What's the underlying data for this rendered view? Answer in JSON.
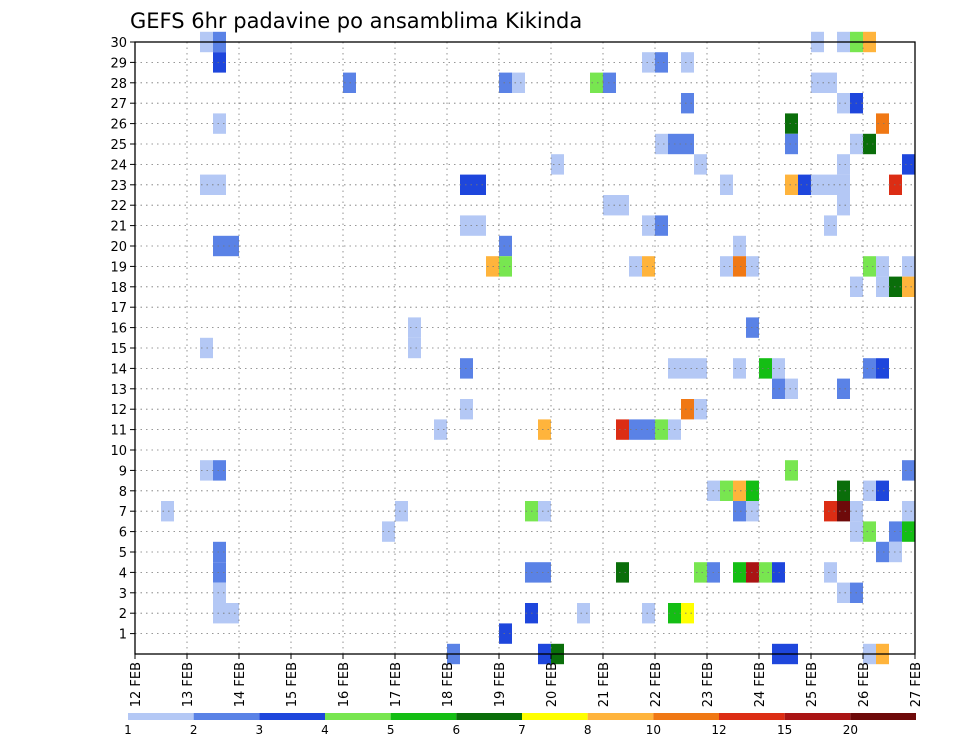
{
  "chart_data": {
    "type": "heatmap",
    "title": "GEFS 6hr padavine po ansamblima Kikinda",
    "xlabel": "",
    "ylabel": "",
    "x_ticks": [
      "12 FEB",
      "13 FEB",
      "14 FEB",
      "15 FEB",
      "16 FEB",
      "17 FEB",
      "18 FEB",
      "19 FEB",
      "20 FEB",
      "21 FEB",
      "22 FEB",
      "23 FEB",
      "24 FEB",
      "25 FEB",
      "26 FEB",
      "27 FEB"
    ],
    "y_ticks": [
      "1",
      "2",
      "3",
      "4",
      "5",
      "6",
      "7",
      "8",
      "9",
      "10",
      "11",
      "12",
      "13",
      "14",
      "15",
      "16",
      "17",
      "18",
      "19",
      "20",
      "21",
      "22",
      "23",
      "24",
      "25",
      "26",
      "27",
      "28",
      "29",
      "30"
    ],
    "x_step": "6hr",
    "x_range_steps": [
      0,
      60
    ],
    "y_range": [
      0,
      30
    ],
    "grid": true,
    "legend": {
      "placement": "bottom",
      "labels": [
        "1",
        "2",
        "3",
        "4",
        "5",
        "6",
        "7",
        "8",
        "10",
        "12",
        "15",
        "20"
      ],
      "colors": [
        "#b4c8f5",
        "#5a82e6",
        "#1e46dc",
        "#78e650",
        "#14be14",
        "#0a6e0a",
        "#ffff00",
        "#ffb43c",
        "#f07814",
        "#dc2d14",
        "#aa1414",
        "#6e0a0a"
      ]
    },
    "cells": [
      [
        5.5,
        30,
        1
      ],
      [
        6.5,
        30,
        2
      ],
      [
        52.5,
        30,
        1
      ],
      [
        54.5,
        30,
        1
      ],
      [
        55.5,
        30,
        4
      ],
      [
        56.5,
        30,
        8
      ],
      [
        6.5,
        29,
        3
      ],
      [
        39.5,
        29,
        1
      ],
      [
        40.5,
        29,
        2
      ],
      [
        42.5,
        29,
        1
      ],
      [
        16.5,
        28,
        2
      ],
      [
        28.5,
        28,
        2
      ],
      [
        29.5,
        28,
        1
      ],
      [
        35.5,
        28,
        4
      ],
      [
        36.5,
        28,
        2
      ],
      [
        52.5,
        28,
        1
      ],
      [
        53.5,
        28,
        1
      ],
      [
        42.5,
        27,
        2
      ],
      [
        54.5,
        27,
        1
      ],
      [
        55.5,
        27,
        3
      ],
      [
        6.5,
        26,
        1
      ],
      [
        50.5,
        26,
        6
      ],
      [
        57.5,
        26,
        10
      ],
      [
        40.5,
        25,
        1
      ],
      [
        41.5,
        25,
        2
      ],
      [
        42.5,
        25,
        2
      ],
      [
        50.5,
        25,
        2
      ],
      [
        55.5,
        25,
        1
      ],
      [
        56.5,
        25,
        6
      ],
      [
        32.5,
        24,
        1
      ],
      [
        43.5,
        24,
        1
      ],
      [
        54.5,
        24,
        1
      ],
      [
        59.5,
        24,
        3
      ],
      [
        5.5,
        23,
        1
      ],
      [
        6.5,
        23,
        1
      ],
      [
        25.5,
        23,
        3
      ],
      [
        26.5,
        23,
        3
      ],
      [
        45.5,
        23,
        1
      ],
      [
        50.5,
        23,
        8
      ],
      [
        51.5,
        23,
        3
      ],
      [
        52.5,
        23,
        1
      ],
      [
        53.5,
        23,
        1
      ],
      [
        54.5,
        23,
        1
      ],
      [
        58.5,
        23,
        12
      ],
      [
        36.5,
        22,
        1
      ],
      [
        37.5,
        22,
        1
      ],
      [
        54.5,
        22,
        1
      ],
      [
        25.5,
        21,
        1
      ],
      [
        26.5,
        21,
        1
      ],
      [
        39.5,
        21,
        1
      ],
      [
        40.5,
        21,
        2
      ],
      [
        53.5,
        21,
        1
      ],
      [
        6.5,
        20,
        2
      ],
      [
        7.5,
        20,
        2
      ],
      [
        28.5,
        20,
        2
      ],
      [
        46.5,
        20,
        1
      ],
      [
        27.5,
        19,
        8
      ],
      [
        28.5,
        19,
        4
      ],
      [
        38.5,
        19,
        1
      ],
      [
        39.5,
        19,
        8
      ],
      [
        45.5,
        19,
        1
      ],
      [
        46.5,
        19,
        10
      ],
      [
        47.5,
        19,
        1
      ],
      [
        56.5,
        19,
        4
      ],
      [
        57.5,
        19,
        1
      ],
      [
        59.5,
        19,
        1
      ],
      [
        55.5,
        18,
        1
      ],
      [
        57.5,
        18,
        1
      ],
      [
        58.5,
        18,
        6
      ],
      [
        59.5,
        18,
        8
      ],
      [
        21.5,
        16,
        1
      ],
      [
        47.5,
        16,
        2
      ],
      [
        5.5,
        15,
        1
      ],
      [
        21.5,
        15,
        1
      ],
      [
        25.5,
        14,
        2
      ],
      [
        41.5,
        14,
        1
      ],
      [
        42.5,
        14,
        1
      ],
      [
        43.5,
        14,
        1
      ],
      [
        46.5,
        14,
        1
      ],
      [
        48.5,
        14,
        5
      ],
      [
        49.5,
        14,
        1
      ],
      [
        56.5,
        14,
        2
      ],
      [
        57.5,
        14,
        3
      ],
      [
        49.5,
        13,
        2
      ],
      [
        50.5,
        13,
        1
      ],
      [
        54.5,
        13,
        2
      ],
      [
        25.5,
        12,
        1
      ],
      [
        42.5,
        12,
        10
      ],
      [
        43.5,
        12,
        1
      ],
      [
        23.5,
        11,
        1
      ],
      [
        31.5,
        11,
        8
      ],
      [
        37.5,
        11,
        12
      ],
      [
        38.5,
        11,
        2
      ],
      [
        39.5,
        11,
        2
      ],
      [
        40.5,
        11,
        4
      ],
      [
        41.5,
        11,
        1
      ],
      [
        5.5,
        9,
        1
      ],
      [
        6.5,
        9,
        2
      ],
      [
        50.5,
        9,
        4
      ],
      [
        59.5,
        9,
        2
      ],
      [
        44.5,
        8,
        1
      ],
      [
        45.5,
        8,
        4
      ],
      [
        46.5,
        8,
        8
      ],
      [
        47.5,
        8,
        5
      ],
      [
        54.5,
        8,
        6
      ],
      [
        56.5,
        8,
        1
      ],
      [
        57.5,
        8,
        3
      ],
      [
        2.5,
        7,
        1
      ],
      [
        20.5,
        7,
        1
      ],
      [
        30.5,
        7,
        4
      ],
      [
        31.5,
        7,
        1
      ],
      [
        46.5,
        7,
        2
      ],
      [
        47.5,
        7,
        1
      ],
      [
        53.5,
        7,
        12
      ],
      [
        54.5,
        7,
        20
      ],
      [
        55.5,
        7,
        1
      ],
      [
        59.5,
        7,
        1
      ],
      [
        19.5,
        6,
        1
      ],
      [
        55.5,
        6,
        1
      ],
      [
        56.5,
        6,
        4
      ],
      [
        58.5,
        6,
        2
      ],
      [
        59.5,
        6,
        5
      ],
      [
        6.5,
        5,
        2
      ],
      [
        57.5,
        5,
        2
      ],
      [
        58.5,
        5,
        1
      ],
      [
        6.5,
        4,
        2
      ],
      [
        30.5,
        4,
        2
      ],
      [
        31.5,
        4,
        2
      ],
      [
        37.5,
        4,
        6
      ],
      [
        43.5,
        4,
        4
      ],
      [
        44.5,
        4,
        2
      ],
      [
        46.5,
        4,
        5
      ],
      [
        47.5,
        4,
        15
      ],
      [
        48.5,
        4,
        4
      ],
      [
        49.5,
        4,
        3
      ],
      [
        53.5,
        4,
        1
      ],
      [
        6.5,
        3,
        1
      ],
      [
        54.5,
        3,
        1
      ],
      [
        55.5,
        3,
        2
      ],
      [
        6.5,
        2,
        1
      ],
      [
        7.5,
        2,
        1
      ],
      [
        30.5,
        2,
        3
      ],
      [
        34.5,
        2,
        1
      ],
      [
        39.5,
        2,
        1
      ],
      [
        41.5,
        2,
        5
      ],
      [
        42.5,
        2,
        7
      ],
      [
        28.5,
        1,
        3
      ],
      [
        24.5,
        0,
        2
      ],
      [
        31.5,
        0,
        3
      ],
      [
        32.5,
        0,
        6
      ],
      [
        49.5,
        0,
        3
      ],
      [
        50.5,
        0,
        3
      ],
      [
        56.5,
        0,
        1
      ],
      [
        57.5,
        0,
        8
      ]
    ]
  }
}
